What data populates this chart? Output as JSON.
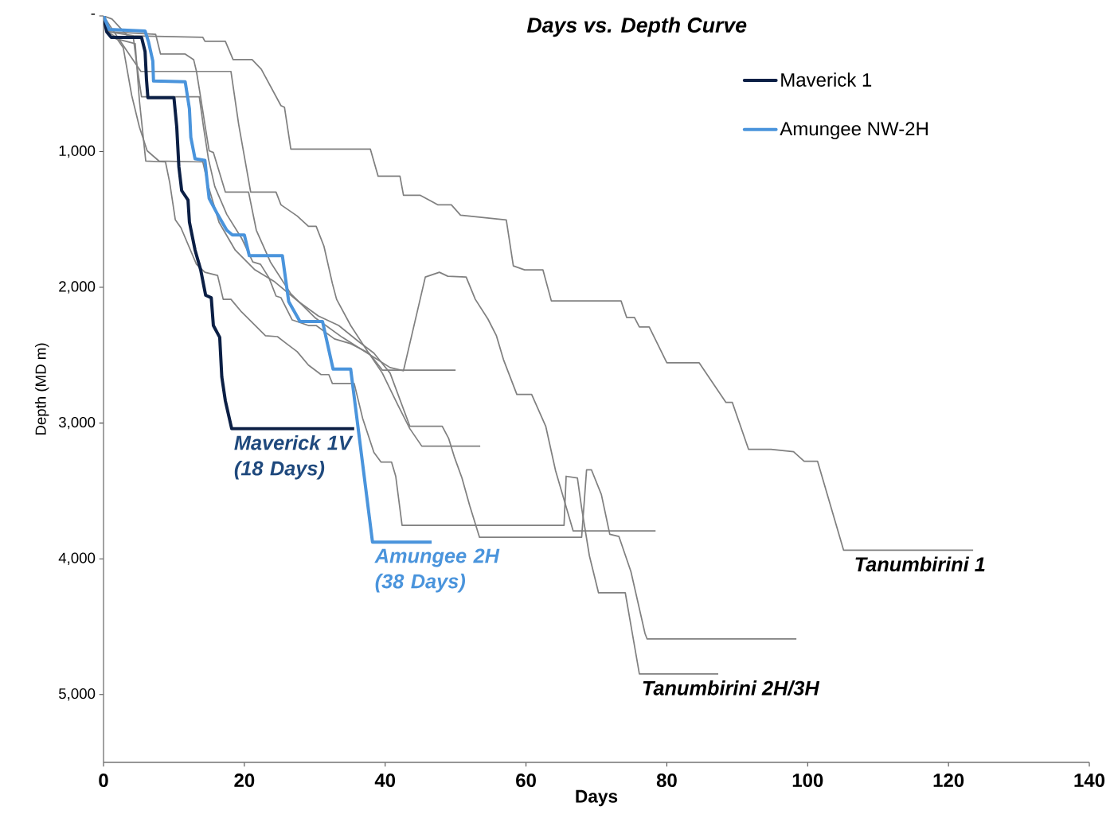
{
  "chart_data": {
    "type": "line",
    "title": "Days vs. Depth Curve",
    "xlabel": "Days",
    "ylabel": "Depth (MD m)",
    "xlim": [
      0,
      140
    ],
    "xticks": [
      0,
      20,
      40,
      60,
      80,
      100,
      120,
      140
    ],
    "ylim": [
      5500,
      0
    ],
    "yticks": [
      {
        "value": 0,
        "label": "-"
      },
      {
        "value": 1000,
        "label": "1,000"
      },
      {
        "value": 2000,
        "label": "2,000"
      },
      {
        "value": 3000,
        "label": "3,000"
      },
      {
        "value": 4000,
        "label": "4,000"
      },
      {
        "value": 5000,
        "label": "5,000"
      }
    ],
    "grid": false,
    "legend": "top right",
    "marker": "none",
    "line_style": "solid",
    "series": [
      {
        "color": "#808080",
        "x": [
          0,
          1.2,
          3.4,
          14.1,
          14.4,
          17.3,
          18.4,
          21.1,
          22.4,
          25.2,
          25.7,
          26.6,
          37.9,
          39.0,
          42.1,
          42.6,
          45.0,
          47.5,
          49.4,
          50.7,
          57.2,
          58.2,
          59.8,
          62.4,
          63.6,
          73.5,
          74.3,
          75.4,
          76.1,
          77.5,
          80.0,
          84.6,
          88.4,
          89.3,
          91.6,
          94.8,
          98.0,
          99.5,
          101.4,
          105.1,
          123.5
        ],
        "values": [
          0,
          23,
          146,
          158,
          187,
          187,
          322,
          322,
          392,
          661,
          673,
          982,
          982,
          1181,
          1181,
          1322,
          1322,
          1392,
          1392,
          1468,
          1503,
          1842,
          1871,
          1871,
          2100,
          2100,
          2222,
          2222,
          2292,
          2292,
          2556,
          2556,
          2848,
          2848,
          3193,
          3193,
          3211,
          3281,
          3281,
          3936,
          3936
        ]
      },
      {
        "color": "#808080",
        "x": [
          0,
          0.7,
          4.2,
          4.7,
          5.4,
          13.6,
          14.2,
          14.9,
          15.8,
          17.5,
          19.6,
          21.2,
          22.3,
          23.5,
          24.5,
          25.2,
          26.8,
          29.1,
          30.2,
          32.8,
          35.1,
          37.7,
          39.6,
          50.0
        ],
        "values": [
          0,
          117,
          146,
          351,
          596,
          596,
          819,
          1053,
          1257,
          1462,
          1637,
          1813,
          1830,
          1930,
          2064,
          2076,
          2240,
          2281,
          2281,
          2380,
          2415,
          2485,
          2610,
          2610
        ]
      },
      {
        "color": "#808080",
        "x": [
          0,
          1.1,
          5.3,
          18.1,
          19.2,
          20.9,
          24.5,
          25.2,
          27.5,
          29.1,
          30.2,
          31.3,
          32.5,
          33.1,
          35.1,
          37.3,
          39.6,
          41.8,
          43.5,
          45.2,
          53.5
        ],
        "values": [
          0,
          88,
          409,
          409,
          801,
          1298,
          1298,
          1392,
          1474,
          1550,
          1550,
          1696,
          1971,
          2088,
          2281,
          2456,
          2632,
          2866,
          3041,
          3170,
          3170
        ]
      },
      {
        "color": "#808080",
        "x": [
          0,
          0.8,
          7.4,
          8.1,
          11.6,
          12.8,
          13.2,
          13.8,
          14.4,
          15.0,
          15.6,
          17.3,
          20.6,
          21.7,
          23.7,
          26.6,
          30.0,
          33.9,
          38.4,
          40.7,
          42.6,
          45.7,
          47.7,
          48.9,
          51.5,
          52.8,
          54.6,
          55.8,
          56.8,
          58.7,
          60.8,
          62.8,
          64.2,
          66.7,
          78.4
        ],
        "values": [
          0,
          117,
          135,
          281,
          281,
          322,
          409,
          602,
          801,
          994,
          1006,
          1298,
          1298,
          1579,
          1813,
          2047,
          2222,
          2368,
          2515,
          2591,
          2614,
          1924,
          1889,
          1918,
          1924,
          2088,
          2234,
          2357,
          2532,
          2789,
          2789,
          3023,
          3351,
          3795,
          3795
        ]
      },
      {
        "color": "#808080",
        "x": [
          0,
          0.9,
          2.0,
          2.8,
          4.0,
          5.1,
          6.2,
          7.9,
          14.1,
          14.9,
          16.4,
          18.7,
          21.5,
          24.3,
          27.7,
          30.5,
          33.4,
          36.2,
          38.4,
          40.7,
          43.5,
          48.1,
          49.0,
          49.8,
          50.9,
          52.0,
          53.4,
          67.9,
          68.6,
          69.3,
          70.7,
          71.9,
          73.2,
          74.9,
          76.9,
          77.2,
          98.4
        ],
        "values": [
          0,
          146,
          175,
          234,
          585,
          819,
          994,
          1070,
          1076,
          1257,
          1520,
          1725,
          1871,
          1959,
          2105,
          2211,
          2281,
          2398,
          2485,
          2632,
          3023,
          3023,
          3111,
          3246,
          3404,
          3608,
          3842,
          3842,
          3345,
          3345,
          3526,
          3819,
          3836,
          4094,
          4550,
          4591,
          4591
        ]
      },
      {
        "color": "#808080",
        "x": [
          0,
          0.6,
          2.3,
          4.5,
          5.1,
          6.0,
          8.8,
          9.4,
          10.2,
          11.0,
          13.2,
          14.4,
          16.2,
          17.0,
          18.1,
          19.6,
          23.0,
          24.7,
          26.0,
          27.5,
          29.1,
          30.9,
          32.0,
          32.5,
          35.6,
          36.8,
          38.4,
          39.4,
          40.9,
          41.5,
          42.4,
          65.4,
          65.7,
          67.3,
          67.9,
          69.0,
          70.3,
          74.1,
          76.1,
          87.3
        ],
        "values": [
          0,
          117,
          175,
          205,
          626,
          1070,
          1076,
          1228,
          1503,
          1561,
          1830,
          1889,
          1912,
          2088,
          2088,
          2181,
          2357,
          2363,
          2415,
          2474,
          2573,
          2643,
          2643,
          2708,
          2708,
          2965,
          3216,
          3287,
          3287,
          3392,
          3754,
          3754,
          3392,
          3404,
          3626,
          3977,
          4251,
          4251,
          4848,
          4848
        ]
      },
      {
        "name": "Maverick 1",
        "color": "#0b1f45",
        "x": [
          0,
          0.45,
          1.1,
          5.4,
          5.9,
          6.1,
          6.3,
          10.0,
          10.4,
          10.7,
          11.1,
          12.0,
          12.2,
          13.0,
          13.8,
          14.5,
          15.3,
          15.6,
          16.5,
          16.8,
          17.3,
          18.2,
          35.6
        ],
        "values": [
          0,
          117,
          158,
          158,
          263,
          468,
          602,
          602,
          819,
          1111,
          1287,
          1357,
          1520,
          1725,
          1871,
          2058,
          2076,
          2281,
          2368,
          2661,
          2836,
          3041,
          3041
        ]
      },
      {
        "name": "Amungee NW-2H",
        "color": "#4a94dc",
        "x": [
          0,
          0.8,
          5.9,
          6.4,
          7.0,
          7.1,
          11.6,
          12.2,
          12.4,
          13.0,
          14.4,
          14.7,
          15.0,
          16.2,
          17.5,
          18.3,
          20.0,
          20.7,
          25.4,
          26.3,
          27.9,
          31.1,
          32.6,
          35.1,
          38.2,
          46.6
        ],
        "values": [
          0,
          99,
          111,
          193,
          333,
          480,
          485,
          684,
          895,
          1053,
          1064,
          1211,
          1345,
          1462,
          1579,
          1614,
          1614,
          1766,
          1766,
          2105,
          2251,
          2251,
          2602,
          2602,
          3877,
          3877
        ]
      }
    ],
    "annotations": [
      {
        "text": "Maverick 1V (18 Days)",
        "x": 18.2,
        "y": 3041
      },
      {
        "text": "Amungee 2H (38 Days)",
        "x": 38.2,
        "y": 3877
      },
      {
        "text": "Tanumbirini 1",
        "x": 123.5,
        "y": 3936
      },
      {
        "text": "Tanumbirini 2H/3H",
        "x": 76.1,
        "y": 4848
      }
    ]
  }
}
